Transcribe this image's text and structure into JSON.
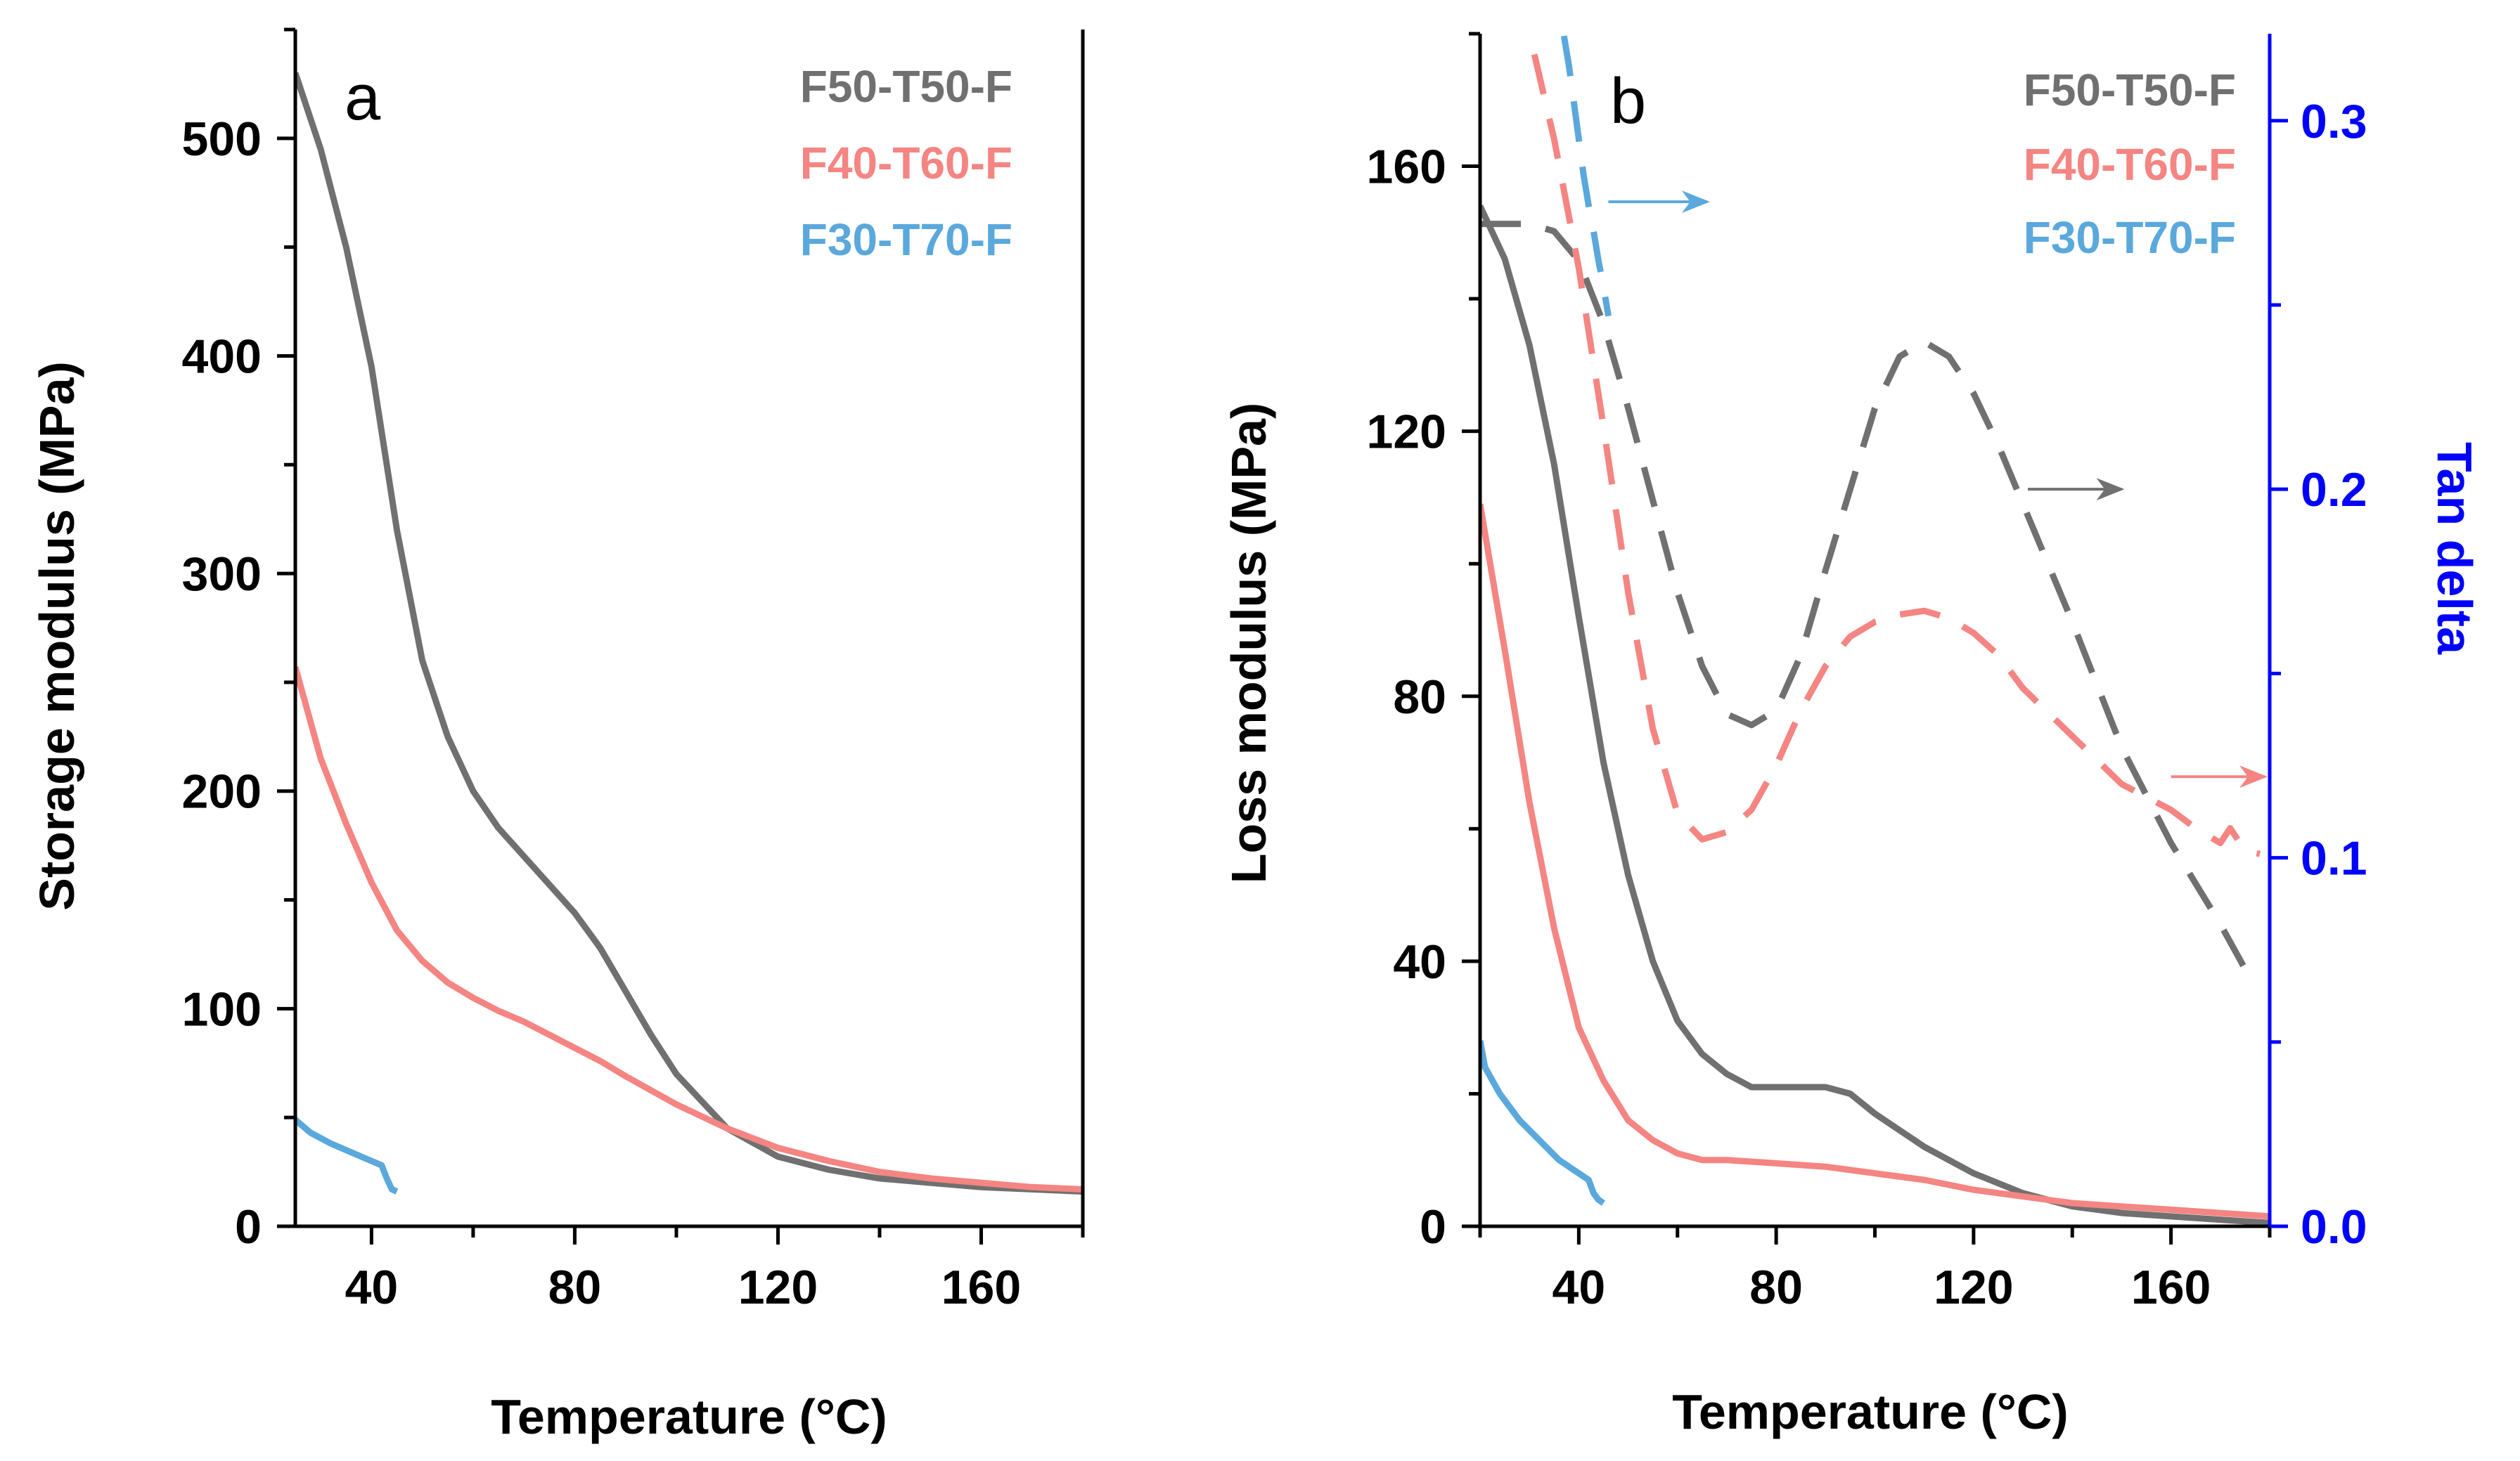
{
  "colors": {
    "F50-T50-F": "#707070",
    "F40-T60-F": "#f48582",
    "F30-T70-F": "#5aa8dc",
    "tan_axis": "#0000ff"
  },
  "chart_data": [
    {
      "panel": "a",
      "type": "line",
      "xlabel": "Temperature (°C)",
      "ylabel": "Storage modulus (MPa)",
      "xlim": [
        25,
        180
      ],
      "ylim": [
        0,
        550
      ],
      "xticks": [
        40,
        80,
        120,
        160
      ],
      "yticks": [
        0,
        100,
        200,
        300,
        400,
        500
      ],
      "legend_position": "top-right",
      "series": [
        {
          "name": "F50-T50-F",
          "style": "solid",
          "x": [
            25,
            30,
            35,
            40,
            45,
            50,
            55,
            60,
            65,
            70,
            75,
            80,
            85,
            90,
            95,
            100,
            110,
            120,
            130,
            140,
            150,
            160,
            170,
            180
          ],
          "y": [
            530,
            495,
            450,
            395,
            320,
            260,
            225,
            200,
            183,
            170,
            157,
            144,
            128,
            108,
            88,
            70,
            45,
            32,
            26,
            22,
            20,
            18,
            17,
            16
          ]
        },
        {
          "name": "F40-T60-F",
          "style": "solid",
          "x": [
            25,
            30,
            35,
            40,
            45,
            50,
            55,
            60,
            65,
            70,
            75,
            80,
            85,
            90,
            100,
            110,
            120,
            130,
            140,
            150,
            160,
            170,
            180
          ],
          "y": [
            257,
            215,
            185,
            158,
            136,
            122,
            112,
            105,
            99,
            94,
            88,
            82,
            76,
            69,
            56,
            45,
            36,
            30,
            25,
            22,
            20,
            18,
            17
          ]
        },
        {
          "name": "F30-T70-F",
          "style": "solid",
          "x": [
            25,
            28,
            32,
            36,
            40,
            42,
            43,
            44,
            45
          ],
          "y": [
            49,
            43,
            38,
            34,
            30,
            28,
            22,
            17,
            16
          ]
        }
      ],
      "label": "a"
    },
    {
      "panel": "b",
      "type": "line",
      "xlabel": "Temperature (°C)",
      "ylabel": "Loss modulus (MPa)",
      "y2label": "Tan delta",
      "xlim": [
        20,
        180
      ],
      "ylim": [
        0,
        180
      ],
      "y2lim": [
        0,
        0.3236
      ],
      "xticks": [
        40,
        80,
        120,
        160
      ],
      "yticks": [
        0,
        40,
        80,
        120,
        160
      ],
      "y2ticks": [
        0.0,
        0.1,
        0.2,
        0.3
      ],
      "y2ticklabels": [
        "0.0",
        "0.1",
        "0.2",
        "0.3"
      ],
      "legend_position": "top-right",
      "series": [
        {
          "name": "F50-T50-F",
          "style": "solid",
          "axis": "left",
          "x": [
            20,
            25,
            30,
            35,
            40,
            45,
            50,
            55,
            60,
            65,
            70,
            75,
            80,
            85,
            90,
            95,
            100,
            110,
            120,
            130,
            140,
            150,
            160,
            170,
            180
          ],
          "y": [
            154,
            146,
            133,
            115,
            92,
            70,
            53,
            40,
            31,
            26,
            23,
            21,
            21,
            21,
            21,
            20,
            17,
            12,
            8,
            5,
            3,
            2,
            1.5,
            1,
            0.5
          ]
        },
        {
          "name": "F40-T60-F",
          "style": "solid",
          "axis": "left",
          "x": [
            20,
            25,
            30,
            35,
            40,
            45,
            50,
            55,
            60,
            65,
            70,
            80,
            90,
            100,
            110,
            120,
            130,
            140,
            150,
            160,
            170,
            180
          ],
          "y": [
            109,
            87,
            64,
            45,
            30,
            22,
            16,
            13,
            11,
            10,
            10,
            9.5,
            9,
            8,
            7,
            5.5,
            4.5,
            3.5,
            3,
            2.5,
            2,
            1.5
          ]
        },
        {
          "name": "F30-T70-F",
          "style": "solid",
          "axis": "left",
          "x": [
            20,
            21,
            24,
            28,
            32,
            36,
            40,
            42,
            43,
            44,
            45
          ],
          "y": [
            28,
            24,
            20,
            16,
            13,
            10,
            8,
            7,
            5,
            4,
            3.5
          ]
        },
        {
          "name": "F50-T50-F",
          "style": "dashed",
          "axis": "right",
          "x": [
            20,
            25,
            30,
            35,
            40,
            45,
            50,
            55,
            60,
            65,
            70,
            75,
            80,
            85,
            90,
            95,
            100,
            105,
            110,
            115,
            120,
            125,
            130,
            140,
            150,
            160,
            170,
            177
          ],
          "y": [
            0.272,
            0.272,
            0.272,
            0.27,
            0.262,
            0.245,
            0.222,
            0.197,
            0.172,
            0.152,
            0.139,
            0.136,
            0.14,
            0.155,
            0.178,
            0.2,
            0.222,
            0.236,
            0.24,
            0.236,
            0.226,
            0.212,
            0.196,
            0.164,
            0.13,
            0.104,
            0.082,
            0.065
          ]
        },
        {
          "name": "F40-T60-F",
          "style": "dashed",
          "axis": "right",
          "x": [
            31,
            35,
            40,
            45,
            50,
            55,
            60,
            65,
            70,
            75,
            80,
            85,
            90,
            95,
            100,
            105,
            110,
            115,
            120,
            125,
            130,
            140,
            150,
            160,
            165,
            170,
            172,
            175,
            178
          ],
          "y": [
            0.318,
            0.295,
            0.26,
            0.217,
            0.172,
            0.135,
            0.112,
            0.105,
            0.107,
            0.113,
            0.125,
            0.14,
            0.152,
            0.16,
            0.164,
            0.166,
            0.167,
            0.165,
            0.161,
            0.155,
            0.146,
            0.133,
            0.12,
            0.113,
            0.108,
            0.104,
            0.108,
            0.102,
            0.101
          ]
        },
        {
          "name": "F30-T70-F",
          "style": "dashed",
          "axis": "right",
          "x": [
            37,
            38,
            39,
            40,
            41,
            42,
            43,
            44,
            45,
            46
          ],
          "y": [
            0.323,
            0.315,
            0.305,
            0.295,
            0.285,
            0.277,
            0.27,
            0.262,
            0.255,
            0.247
          ]
        }
      ],
      "annotations": [
        {
          "type": "arrow",
          "series": "F30-T70-F",
          "direction": "right",
          "from": [
            46,
            0.278
          ],
          "to": [
            66,
            0.278
          ]
        },
        {
          "type": "arrow",
          "series": "F50-T50-F",
          "direction": "right",
          "from": [
            131,
            0.2
          ],
          "to": [
            150,
            0.2
          ]
        },
        {
          "type": "arrow",
          "series": "F40-T60-F",
          "direction": "right",
          "from": [
            160,
            0.122
          ],
          "to": [
            179,
            0.122
          ]
        }
      ],
      "label": "b"
    }
  ]
}
